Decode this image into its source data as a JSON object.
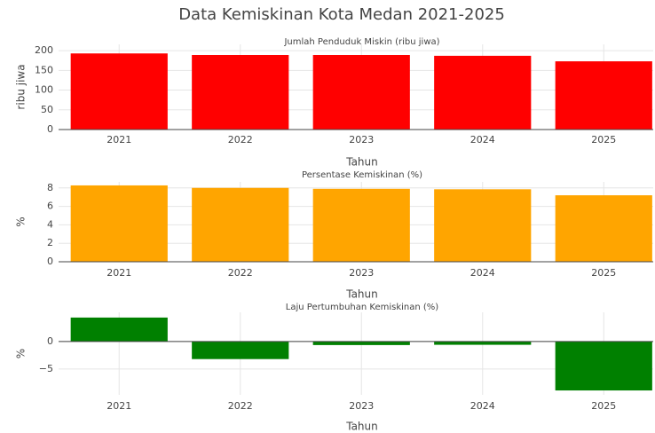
{
  "title": "Data Kemiskinan Kota Medan 2021-2025",
  "chart_data": [
    {
      "type": "bar",
      "title": "Jumlah Penduduk Miskin (ribu jiwa)",
      "categories": [
        "2021",
        "2022",
        "2023",
        "2024",
        "2025"
      ],
      "values": [
        193,
        189,
        189,
        187,
        173
      ],
      "color": "#ff0000",
      "ylim": [
        0,
        216
      ],
      "yticks": [
        0,
        50,
        100,
        150,
        200
      ],
      "x_label": "Tahun",
      "y_label": "ribu jiwa",
      "grid": true
    },
    {
      "type": "bar",
      "title": "Persentase Kemiskinan (%)",
      "categories": [
        "2021",
        "2022",
        "2023",
        "2024",
        "2025"
      ],
      "values": [
        8.27,
        8.0,
        7.9,
        7.85,
        7.2
      ],
      "color": "#ffa500",
      "ylim": [
        0,
        8.65
      ],
      "yticks": [
        0,
        2,
        4,
        6,
        8
      ],
      "x_label": "Tahun",
      "y_label": "%",
      "grid": true
    },
    {
      "type": "bar",
      "title": "Laju Pertumbuhan Kemiskinan (%)",
      "categories": [
        "2021",
        "2022",
        "2023",
        "2024",
        "2025"
      ],
      "values": [
        4.35,
        -3.2,
        -0.65,
        -0.6,
        -8.9
      ],
      "color": "#008000",
      "ylim": [
        -9.7,
        5.3
      ],
      "yticks": [
        {
          "value": -5,
          "label": "−5"
        },
        0
      ],
      "x_label": "Tahun",
      "y_label": "%",
      "grid": true
    }
  ]
}
